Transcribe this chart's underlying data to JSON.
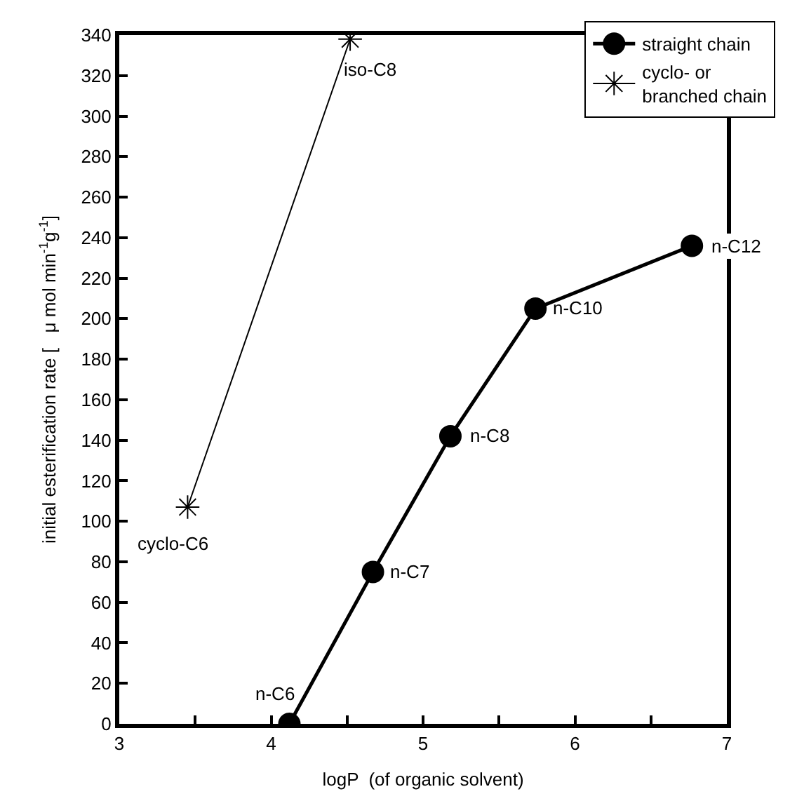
{
  "chart_data": {
    "type": "line",
    "xlabel": "logP  (of organic solvent)",
    "ylabel": "initial esterification rate [   μ mol min$^{-1}$g$^{-1}$]",
    "xlim": [
      3,
      7
    ],
    "xticks": [
      3,
      {
        "value": 3.5,
        "label": null
      },
      4,
      {
        "value": 4.5,
        "label": null
      },
      5,
      {
        "value": 5.5,
        "label": null
      },
      6,
      {
        "value": 6.5,
        "label": null
      },
      7
    ],
    "ylim": [
      0,
      340
    ],
    "yticks": [
      0,
      20,
      40,
      60,
      80,
      100,
      120,
      140,
      160,
      180,
      200,
      220,
      240,
      260,
      280,
      300,
      320,
      340
    ],
    "legend": "top right",
    "series": [
      {
        "name": "straight chain",
        "color": "#000000",
        "marker": "circle",
        "x": [
          4.12,
          4.67,
          5.18,
          5.74,
          6.77
        ],
        "values": [
          0,
          75,
          142,
          205,
          236
        ]
      },
      {
        "name": "cyclo- or branched chain",
        "color": "#000000",
        "marker": "cross",
        "x": [
          3.45,
          4.52
        ],
        "values": [
          107,
          338
        ]
      }
    ],
    "annotations": [
      {
        "text": "iso-C8",
        "x": 4.52,
        "y": 338
      },
      {
        "text": "n-C12",
        "x": 6.77,
        "y": 236
      },
      {
        "text": "n-C10",
        "x": 5.74,
        "y": 205
      },
      {
        "text": "n-C8",
        "x": 5.18,
        "y": 142
      },
      {
        "text": "n-C7",
        "x": 4.67,
        "y": 75
      },
      {
        "text": "n-C6",
        "x": 4.12,
        "y": 0
      },
      {
        "text": "cyclo-C6",
        "x": 3.45,
        "y": 107
      }
    ]
  }
}
